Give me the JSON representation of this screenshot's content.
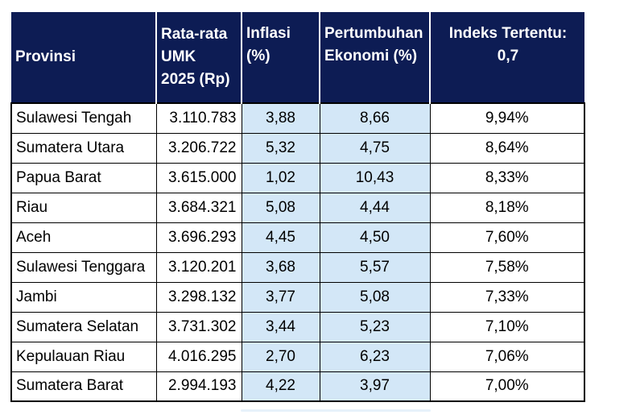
{
  "colors": {
    "header_bg": "#0d1c54",
    "header_text": "#ffffff",
    "highlight_bg": "#d3e7f7",
    "border": "#000000",
    "body_text": "#000000",
    "page_bg": "#ffffff"
  },
  "table": {
    "columns": [
      {
        "id": "provinsi",
        "label": "Provinsi",
        "lines": [
          "Provinsi"
        ]
      },
      {
        "id": "umk",
        "label": "Rata-rata UMK 2025 (Rp)",
        "lines": [
          "Rata-rata",
          "UMK",
          "2025 (Rp)"
        ]
      },
      {
        "id": "inflasi",
        "label": "Inflasi (%)",
        "lines": [
          "Inflasi",
          "(%)"
        ]
      },
      {
        "id": "pertumbuhan",
        "label": "Pertumbuhan Ekonomi (%)",
        "lines": [
          "Pertumbuhan",
          "Ekonomi (%)"
        ]
      },
      {
        "id": "indeks",
        "label": "Indeks Tertentu: 0,7",
        "lines": [
          "Indeks Tertentu:",
          "0,7"
        ]
      }
    ],
    "rows": [
      {
        "provinsi": "Sulawesi Tengah",
        "umk": "3.110.783",
        "inflasi": "3,88",
        "pertumbuhan": "8,66",
        "indeks": "9,94%"
      },
      {
        "provinsi": "Sumatera Utara",
        "umk": "3.206.722",
        "inflasi": "5,32",
        "pertumbuhan": "4,75",
        "indeks": "8,64%"
      },
      {
        "provinsi": "Papua Barat",
        "umk": "3.615.000",
        "inflasi": "1,02",
        "pertumbuhan": "10,43",
        "indeks": "8,33%"
      },
      {
        "provinsi": "Riau",
        "umk": "3.684.321",
        "inflasi": "5,08",
        "pertumbuhan": "4,44",
        "indeks": "8,18%"
      },
      {
        "provinsi": "Aceh",
        "umk": "3.696.293",
        "inflasi": "4,45",
        "pertumbuhan": "4,50",
        "indeks": "7,60%"
      },
      {
        "provinsi": "Sulawesi Tenggara",
        "umk": "3.120.201",
        "inflasi": "3,68",
        "pertumbuhan": "5,57",
        "indeks": "7,58%"
      },
      {
        "provinsi": "Jambi",
        "umk": "3.298.132",
        "inflasi": "3,77",
        "pertumbuhan": "5,08",
        "indeks": "7,33%"
      },
      {
        "provinsi": "Sumatera Selatan",
        "umk": "3.731.302",
        "inflasi": "3,44",
        "pertumbuhan": "5,23",
        "indeks": "7,10%"
      },
      {
        "provinsi": "Kepulauan Riau",
        "umk": "4.016.295",
        "inflasi": "2,70",
        "pertumbuhan": "6,23",
        "indeks": "7,06%"
      },
      {
        "provinsi": "Sumatera Barat",
        "umk": "2.994.193",
        "inflasi": "4,22",
        "pertumbuhan": "3,97",
        "indeks": "7,00%"
      }
    ]
  },
  "chart_data": {
    "type": "table",
    "columns": [
      "Provinsi",
      "Rata-rata UMK 2025 (Rp)",
      "Inflasi (%)",
      "Pertumbuhan Ekonomi (%)",
      "Indeks Tertentu: 0,7"
    ],
    "rows": [
      [
        "Sulawesi Tengah",
        "3.110.783",
        "3,88",
        "8,66",
        "9,94%"
      ],
      [
        "Sumatera Utara",
        "3.206.722",
        "5,32",
        "4,75",
        "8,64%"
      ],
      [
        "Papua Barat",
        "3.615.000",
        "1,02",
        "10,43",
        "8,33%"
      ],
      [
        "Riau",
        "3.684.321",
        "5,08",
        "4,44",
        "8,18%"
      ],
      [
        "Aceh",
        "3.696.293",
        "4,45",
        "4,50",
        "7,60%"
      ],
      [
        "Sulawesi Tenggara",
        "3.120.201",
        "3,68",
        "5,57",
        "7,58%"
      ],
      [
        "Jambi",
        "3.298.132",
        "3,77",
        "5,08",
        "7,33%"
      ],
      [
        "Sumatera Selatan",
        "3.731.302",
        "3,44",
        "5,23",
        "7,10%"
      ],
      [
        "Kepulauan Riau",
        "4.016.295",
        "2,70",
        "6,23",
        "7,06%"
      ],
      [
        "Sumatera Barat",
        "2.994.193",
        "4,22",
        "3,97",
        "7,00%"
      ]
    ],
    "highlighted_columns": [
      "Inflasi (%)",
      "Pertumbuhan Ekonomi (%)"
    ],
    "layout": {
      "header_bg": "#0d1c54",
      "highlight_bg": "#d3e7f7",
      "grid": "on"
    }
  }
}
